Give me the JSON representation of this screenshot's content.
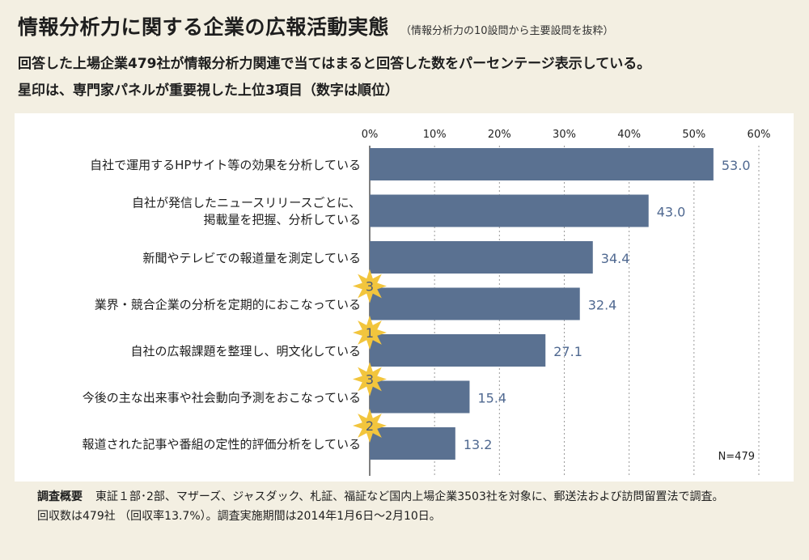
{
  "title": "情報分析力に関する企業の広報活動実態",
  "title_note": "（情報分析力の10設問から主要設問を抜粋）",
  "description": [
    "回答した上場企業479社が情報分析力関連で当てはまると回答した数をパーセンテージ表示している。",
    "星印は、専門家パネルが重要視した上位3項目（数字は順位）"
  ],
  "footer": {
    "label": "調査概要",
    "line1": "東証１部･2部、マザーズ、ジャスダック、札証、福証など国内上場企業3503社を対象に、郵送法および訪問留置法で調査。",
    "line2": "回収数は479社 （回収率13.7%）。調査実施期間は2014年1月6日〜2月10日。"
  },
  "colors": {
    "bar": "#5a7191",
    "value_text": "#4f6890",
    "star": "#f2c53d",
    "background": "#f3efe2",
    "panel": "#ffffff"
  },
  "chart_data": {
    "type": "bar",
    "orientation": "horizontal",
    "categories": [
      [
        "自社で運用するHPサイト等の効果を分析している"
      ],
      [
        "自社が発信したニュースリリースごとに、",
        "掲載量を把握、分析している"
      ],
      [
        "新聞やテレビでの報道量を測定している"
      ],
      [
        "業界・競合企業の分析を定期的におこなっている"
      ],
      [
        "自社の広報課題を整理し、明文化している"
      ],
      [
        "今後の主な出来事や社会動向予測をおこなっている"
      ],
      [
        "報道された記事や番組の定性的評価分析をしている"
      ]
    ],
    "values": [
      53.0,
      43.0,
      34.4,
      32.4,
      27.1,
      15.4,
      13.2
    ],
    "value_labels": [
      "53.0",
      "43.0",
      "34.4",
      "32.4",
      "27.1",
      "15.4",
      "13.2"
    ],
    "star_ranks": [
      "",
      "",
      "",
      "3",
      "1",
      "3",
      "2"
    ],
    "xlim": [
      0,
      60
    ],
    "xticks": [
      0,
      10,
      20,
      30,
      40,
      50,
      60
    ],
    "xtick_labels": [
      "0%",
      "10%",
      "20%",
      "30%",
      "40%",
      "50%",
      "60%"
    ],
    "grid": "vertical-dashed",
    "annotation": "N=479"
  }
}
